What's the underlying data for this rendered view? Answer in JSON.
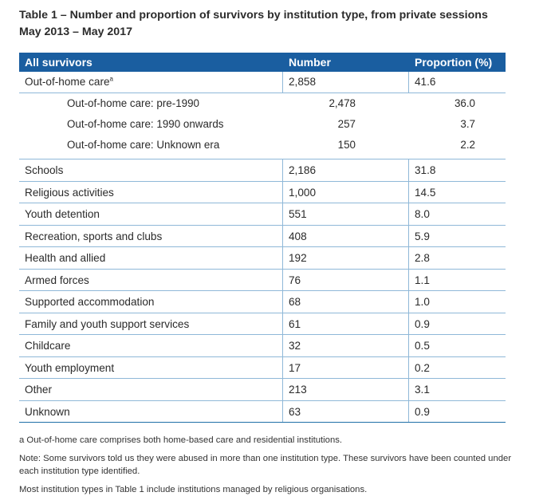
{
  "title": {
    "line1": "Table 1 – Number and proportion of survivors by institution type, from private sessions",
    "line2": "May 2013 – May 2017"
  },
  "table": {
    "headers": {
      "category": "All survivors",
      "number": "Number",
      "proportion": "Proportion (%)"
    },
    "ohc": {
      "label": "Out-of-home care",
      "marker": "a",
      "number": "2,858",
      "proportion": "41.6"
    },
    "ohc_sub": [
      {
        "label": "Out-of-home care: pre-1990",
        "number": "2,478",
        "proportion": "36.0"
      },
      {
        "label": "Out-of-home care: 1990 onwards",
        "number": "257",
        "proportion": "3.7"
      },
      {
        "label": "Out-of-home care: Unknown era",
        "number": "150",
        "proportion": "2.2"
      }
    ],
    "rows": [
      {
        "label": "Schools",
        "number": "2,186",
        "proportion": "31.8"
      },
      {
        "label": "Religious activities",
        "number": "1,000",
        "proportion": "14.5"
      },
      {
        "label": "Youth detention",
        "number": "551",
        "proportion": "8.0"
      },
      {
        "label": "Recreation, sports and clubs",
        "number": "408",
        "proportion": "5.9"
      },
      {
        "label": "Health and allied",
        "number": "192",
        "proportion": "2.8"
      },
      {
        "label": "Armed forces",
        "number": "76",
        "proportion": "1.1"
      },
      {
        "label": "Supported accommodation",
        "number": "68",
        "proportion": "1.0"
      },
      {
        "label": "Family and youth support services",
        "number": "61",
        "proportion": "0.9"
      },
      {
        "label": "Childcare",
        "number": "32",
        "proportion": "0.5"
      },
      {
        "label": "Youth employment",
        "number": "17",
        "proportion": "0.2"
      },
      {
        "label": "Other",
        "number": "213",
        "proportion": "3.1"
      },
      {
        "label": "Unknown",
        "number": "63",
        "proportion": "0.9"
      }
    ]
  },
  "notes": {
    "footnote_a": "a Out-of-home care comprises both home-based care and residential institutions.",
    "note": "Note: Some survivors told us they were abused in more than one institution type. These survivors have been counted under each institution type identified.",
    "religious": "Most institution types in Table 1 include institutions managed by religious organisations."
  }
}
